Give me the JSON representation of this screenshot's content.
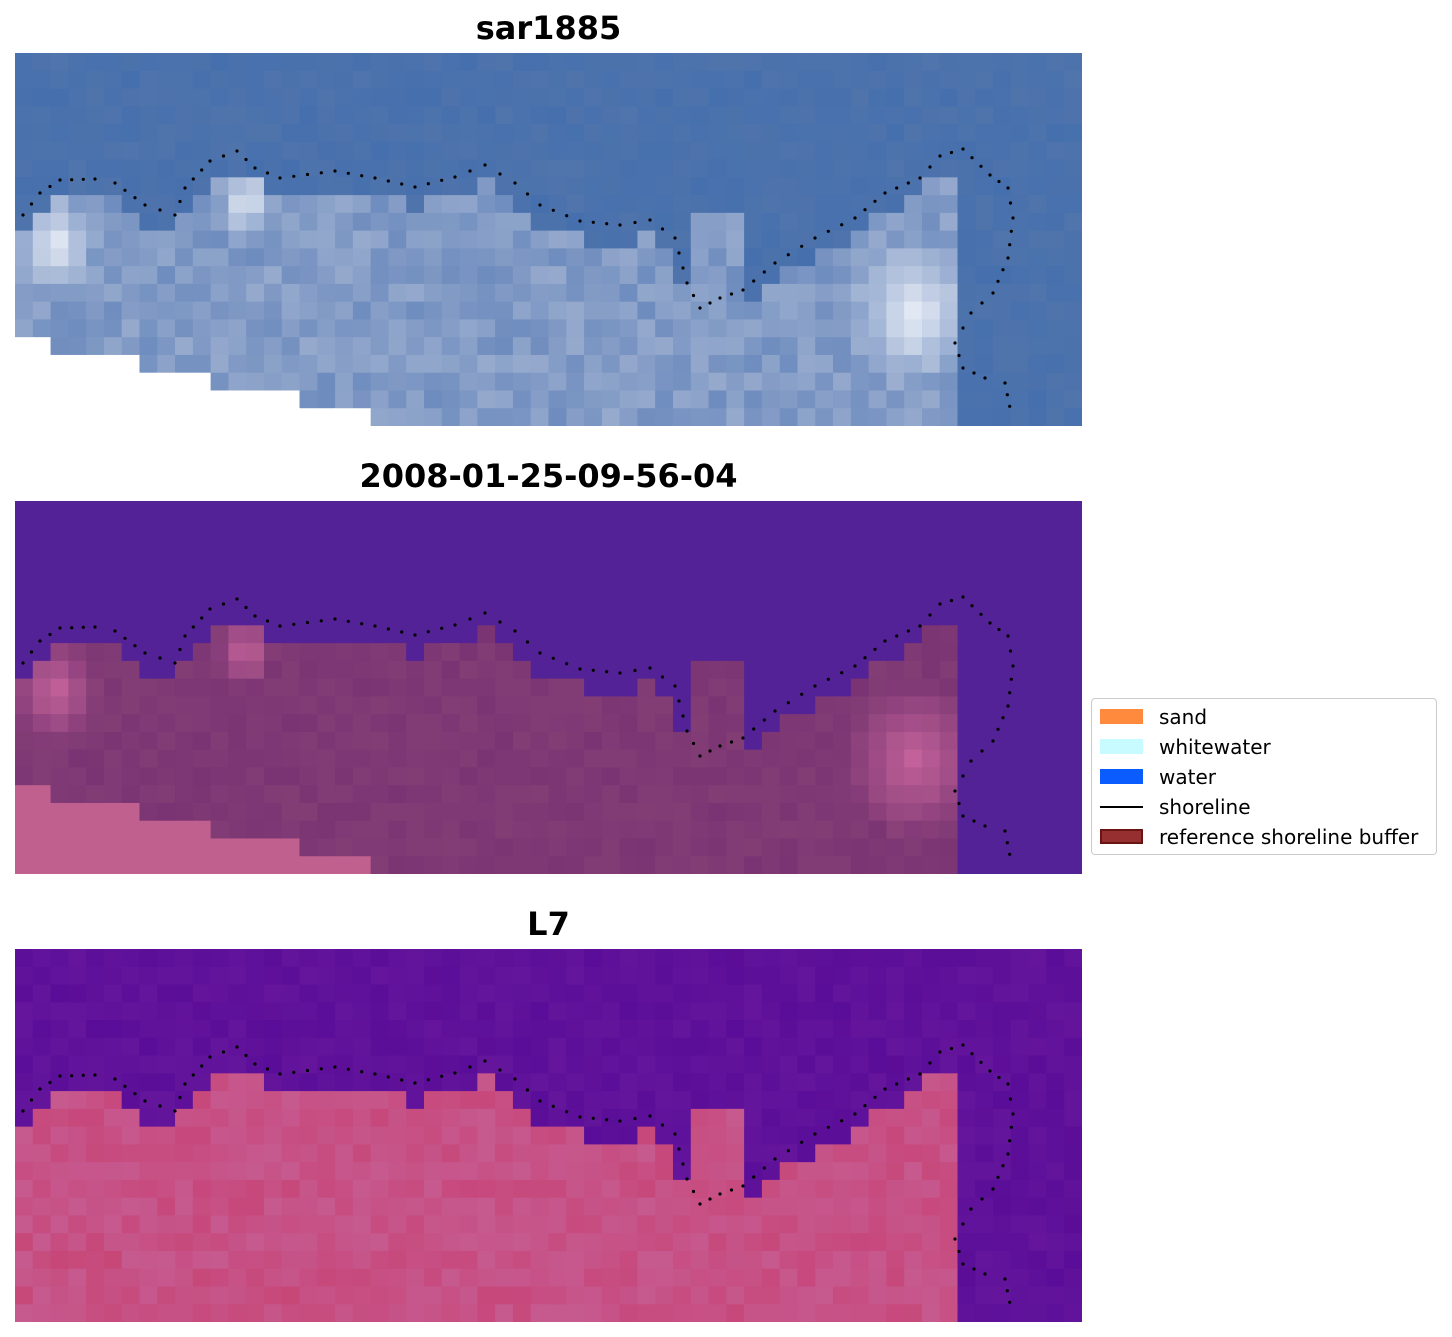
{
  "panels": [
    {
      "title": "sar1885",
      "kind": "rgb"
    },
    {
      "title": "2008-01-25-09-56-04",
      "kind": "classified"
    },
    {
      "title": "L7",
      "kind": "index"
    }
  ],
  "legend": {
    "items": [
      {
        "label": "sand",
        "color": "#ff8a3d",
        "type": "patch"
      },
      {
        "label": "whitewater",
        "color": "#c8fbff",
        "type": "patch"
      },
      {
        "label": "water",
        "color": "#0a5cff",
        "type": "patch"
      },
      {
        "label": "shoreline",
        "color": "#000000",
        "type": "line"
      },
      {
        "label": "reference shoreline buffer",
        "color": "#962f2f",
        "type": "patch",
        "edge": "#6b1414"
      }
    ]
  },
  "colors": {
    "rgb_water": "#4670ad",
    "rgb_whitewater": "#f2f5fb",
    "classified_background": "#532296",
    "classified_land": "#7a3473",
    "classified_nodata": "#c0608f",
    "index_water": "#5a0d98",
    "index_land": "#c65a8f"
  }
}
